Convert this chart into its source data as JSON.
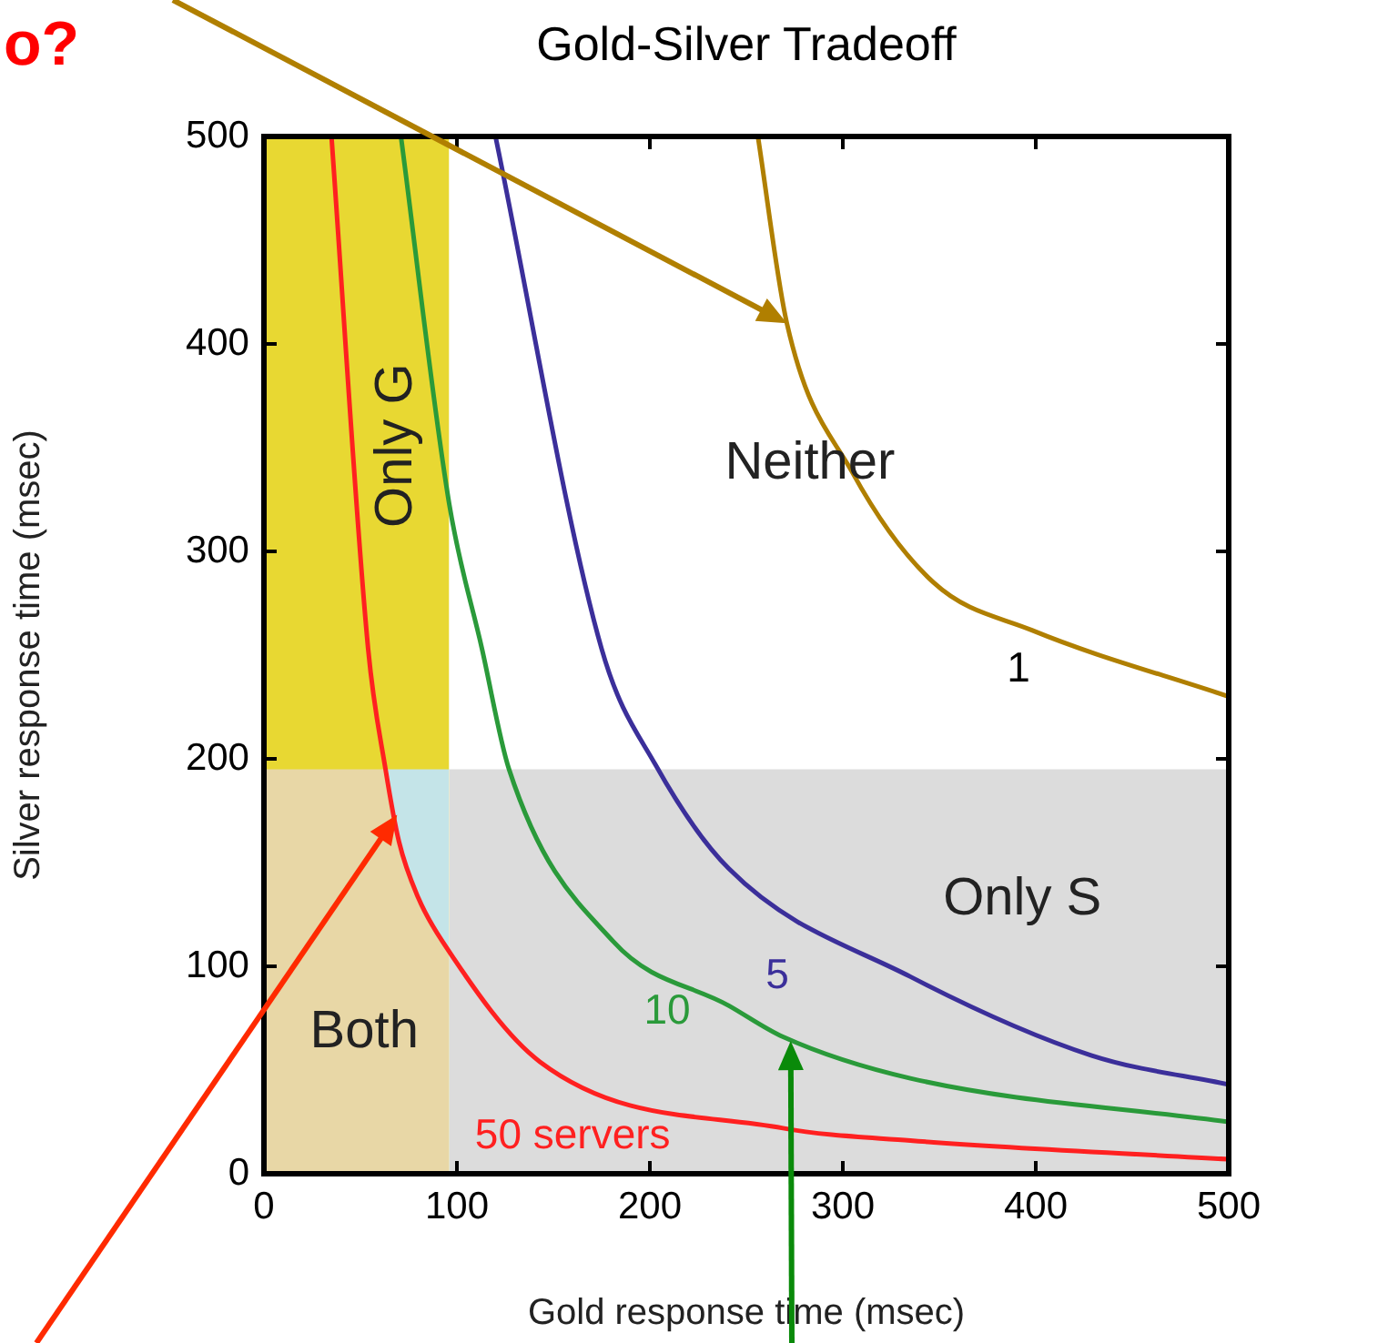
{
  "chart_data": {
    "type": "line",
    "title": "Gold-Silver Tradeoff",
    "xlabel": "Gold response time (msec)",
    "ylabel": "Silver response time (msec)",
    "xlim": [
      0,
      500
    ],
    "xticks": [
      0,
      100,
      200,
      300,
      400,
      500
    ],
    "ylim": [
      0,
      500
    ],
    "yticks": [
      0,
      100,
      200,
      300,
      400,
      500
    ],
    "grid": false,
    "legend": false,
    "marker": "none",
    "series": [
      {
        "type": "area",
        "color": "#e8d832",
        "x": [
          0,
          96
        ],
        "values": [
          500,
          500
        ]
      },
      {
        "type": "area",
        "color": "#c4e4e8",
        "x": [
          63,
          96
        ],
        "values": [
          195,
          195
        ]
      },
      {
        "type": "area",
        "color": "#e8d7a6",
        "x": [
          0,
          63,
          70,
          80,
          96
        ],
        "values": [
          195,
          195,
          160,
          133,
          108
        ]
      },
      {
        "type": "area",
        "color": "#dcdcdc",
        "x": [
          96,
          500
        ],
        "values": [
          195,
          195
        ]
      },
      {
        "name": "1",
        "type": "line",
        "color": "#b07f00",
        "x": [
          256,
          271,
          305,
          347,
          398,
          500
        ],
        "values": [
          500,
          410,
          338,
          285,
          262,
          230
        ]
      },
      {
        "name": "5",
        "type": "line",
        "color": "#3b2f9a",
        "x": [
          120,
          175,
          203,
          241,
          335,
          429,
          500
        ],
        "values": [
          500,
          253,
          197,
          147,
          95,
          57,
          43
        ]
      },
      {
        "name": "10",
        "type": "line",
        "color": "#2a9a3a",
        "x": [
          71,
          96,
          113,
          127,
          181,
          241,
          269,
          335,
          500
        ],
        "values": [
          500,
          323,
          253,
          195,
          112,
          81,
          66,
          46,
          25
        ]
      },
      {
        "name": "50 servers",
        "type": "line",
        "color": "#ff2020",
        "x": [
          35,
          54,
          63,
          70,
          80,
          92.5,
          143,
          269,
          335,
          500
        ],
        "values": [
          500,
          253,
          195,
          160,
          133,
          112,
          54,
          22,
          16,
          7
        ]
      }
    ],
    "annotations": [
      "o?",
      "Neither",
      "Only G",
      "Only S",
      "Both"
    ]
  }
}
